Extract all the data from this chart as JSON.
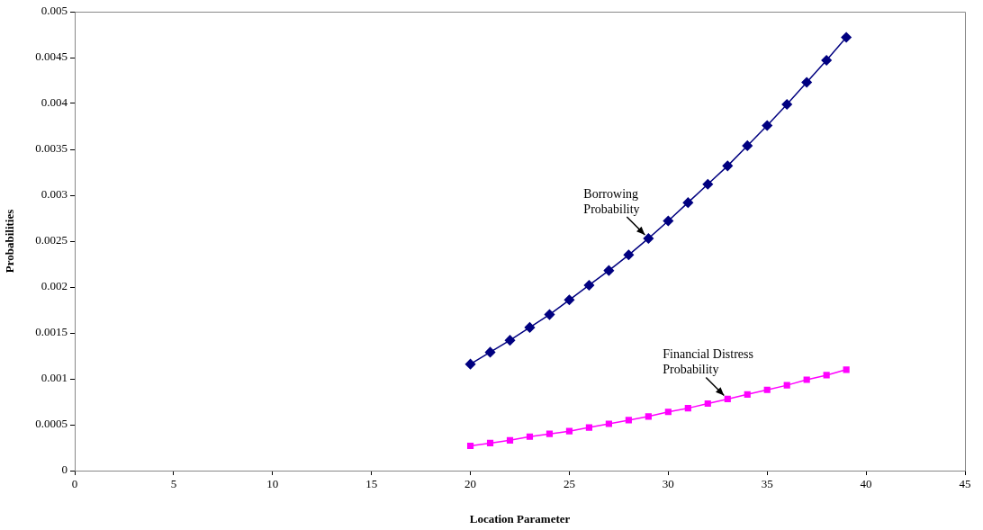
{
  "chart_data": {
    "type": "line",
    "xlabel": "Location Parameter",
    "ylabel": "Probabilities",
    "x": [
      20,
      21,
      22,
      23,
      24,
      25,
      26,
      27,
      28,
      29,
      30,
      31,
      32,
      33,
      34,
      35,
      36,
      37,
      38,
      39
    ],
    "series": [
      {
        "color": "#000080",
        "marker": "diamond",
        "values": [
          0.00116,
          0.00129,
          0.00142,
          0.00156,
          0.0017,
          0.00186,
          0.00202,
          0.00218,
          0.00235,
          0.00253,
          0.00272,
          0.00292,
          0.00312,
          0.00332,
          0.00354,
          0.00376,
          0.00399,
          0.00423,
          0.00447,
          0.00472
        ]
      },
      {
        "color": "#ff00ff",
        "marker": "square",
        "values": [
          0.00027,
          0.0003,
          0.00033,
          0.00037,
          0.0004,
          0.00043,
          0.00047,
          0.00051,
          0.00055,
          0.00059,
          0.00064,
          0.00068,
          0.00073,
          0.00078,
          0.00083,
          0.00088,
          0.00093,
          0.00099,
          0.00104,
          0.0011
        ]
      }
    ],
    "xlim": [
      0,
      45
    ],
    "xticks": [
      0,
      5,
      10,
      15,
      20,
      25,
      30,
      35,
      40,
      45
    ],
    "ylim": [
      0,
      0.005
    ],
    "yticks": [
      0,
      0.0005,
      0.001,
      0.0015,
      0.002,
      0.0025,
      0.003,
      0.0035,
      0.004,
      0.0045,
      0.005
    ],
    "grid": false,
    "legend": false,
    "line_style": "solid",
    "annotations": [
      {
        "text": "Borrowing\nProbability",
        "x": 29,
        "y": 0.00253
      },
      {
        "text": "Financial Distress\nProbability",
        "x": 33,
        "y": 0.00078
      }
    ]
  }
}
